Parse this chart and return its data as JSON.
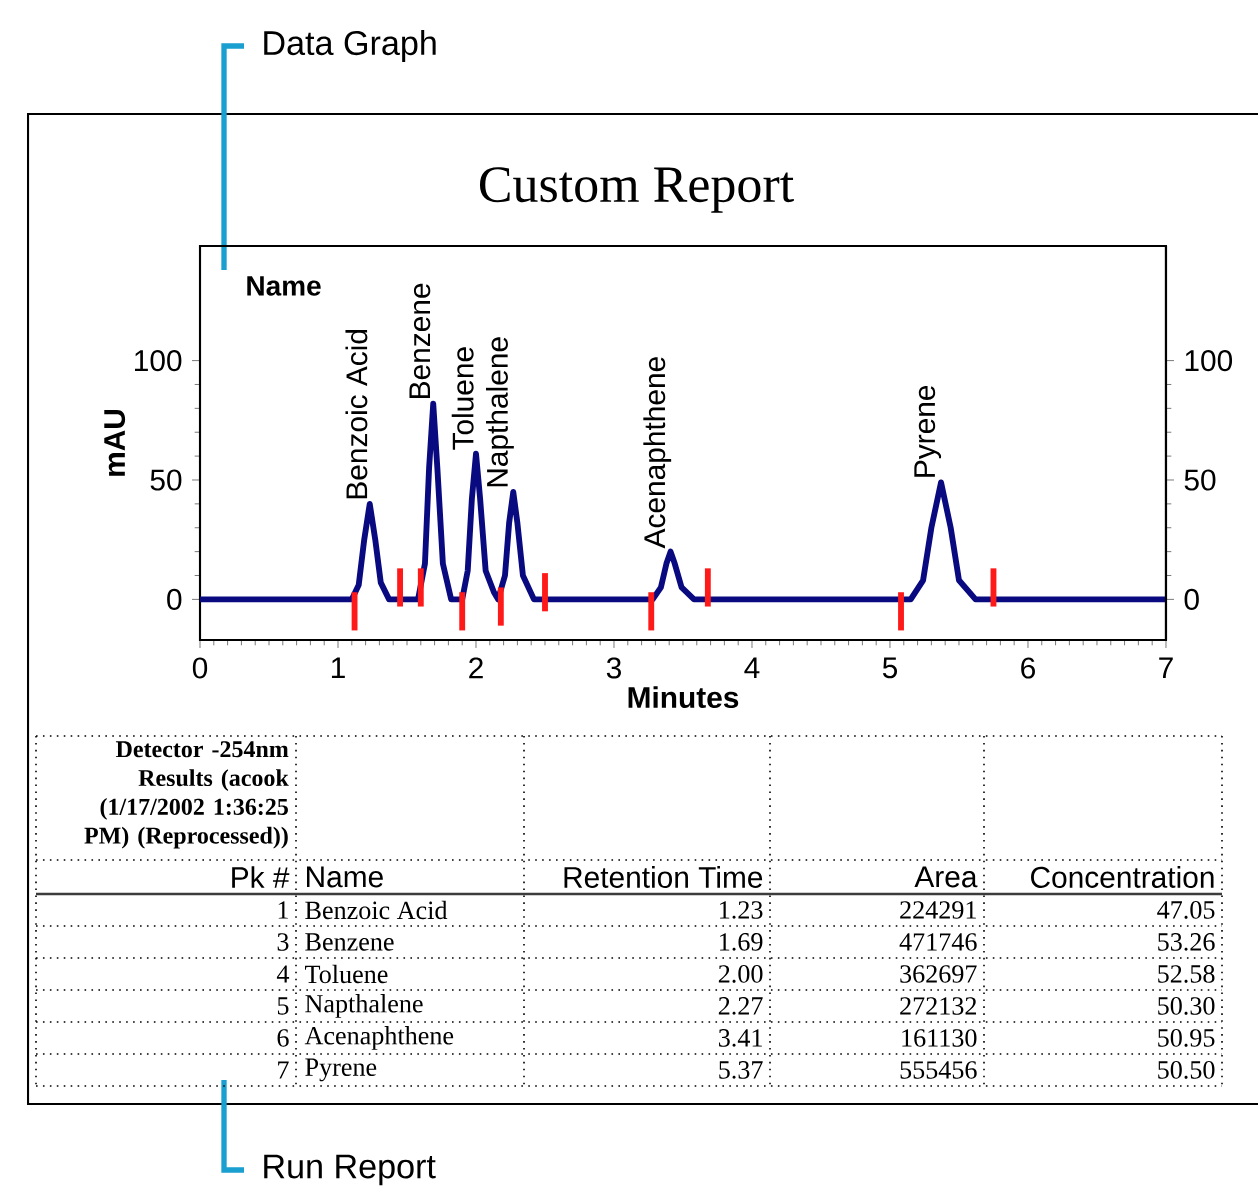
{
  "chart_data": {
    "type": "line",
    "title": "Custom Report",
    "xlabel": "Minutes",
    "ylabel": "mAU",
    "xlim": [
      0,
      7
    ],
    "xticks": [
      0,
      1,
      2,
      3,
      4,
      5,
      6,
      7
    ],
    "ylim": [
      -17,
      148
    ],
    "yticks": [
      0,
      50,
      100
    ],
    "y2lim": [
      -17,
      148
    ],
    "y2ticks": [
      0,
      50,
      100
    ],
    "series": [
      {
        "type": "line",
        "color": "#0a0a80",
        "x": [
          0,
          1.1,
          1.15,
          1.19,
          1.23,
          1.27,
          1.31,
          1.37,
          1.58,
          1.63,
          1.66,
          1.69,
          1.72,
          1.76,
          1.82,
          1.9,
          1.94,
          1.97,
          2.0,
          2.03,
          2.07,
          2.13,
          2.16,
          2.21,
          2.24,
          2.27,
          2.3,
          2.34,
          2.42,
          3.28,
          3.34,
          3.38,
          3.41,
          3.44,
          3.49,
          3.58,
          5.15,
          5.24,
          5.3,
          5.37,
          5.44,
          5.5,
          5.62,
          7
        ],
        "values": [
          0,
          0,
          6,
          25,
          40,
          25,
          7,
          0,
          0,
          15,
          55,
          82,
          55,
          15,
          0,
          0,
          12,
          42,
          61,
          42,
          12,
          3,
          0,
          10,
          32,
          45,
          32,
          10,
          0,
          0,
          5,
          15,
          20,
          15,
          5,
          0,
          0,
          8,
          30,
          49,
          30,
          8,
          0,
          0
        ]
      },
      {
        "type": "bar",
        "color": "#ff1a1a",
        "x": [
          1.12,
          1.45,
          1.6,
          1.9,
          2.18,
          2.5,
          3.27,
          3.68,
          5.08,
          5.75
        ],
        "base": [
          -13,
          -3,
          -3,
          -13,
          -11,
          -5,
          -13,
          -3,
          -13,
          -3
        ],
        "values": [
          16,
          16,
          16,
          16,
          16,
          16,
          16,
          16,
          16,
          16
        ]
      }
    ],
    "annotations": [
      "Data Graph",
      "Run Report",
      "Name",
      {
        "text": "Benzoic Acid",
        "x": 1.23,
        "y": 40
      },
      {
        "text": "Benzene",
        "x": 1.69,
        "y": 82
      },
      {
        "text": "Toluene",
        "x": 2.0,
        "y": 61
      },
      {
        "text": "Napthalene",
        "x": 2.27,
        "y": 45
      },
      {
        "text": "Acenaphthene",
        "x": 3.41,
        "y": 20
      },
      {
        "text": "Pyrene",
        "x": 5.37,
        "y": 49
      },
      "Detector -254nm Results (acook (1/17/2002 1:36:25 PM) (Reprocessed))",
      "Pk #",
      "Name",
      "Retention Time",
      "Area",
      "Concentration",
      "1",
      "Benzoic Acid",
      "1.23",
      "224291",
      "47.05",
      "3",
      "Benzene",
      "1.69",
      "471746",
      "53.26",
      "4",
      "Toluene",
      "2.00",
      "362697",
      "52.58",
      "5",
      "Napthalene",
      "2.27",
      "272132",
      "50.30",
      "6",
      "Acenaphthene",
      "3.41",
      "161130",
      "50.95",
      "7",
      "Pyrene",
      "5.37",
      "555456",
      "50.50"
    ]
  }
}
